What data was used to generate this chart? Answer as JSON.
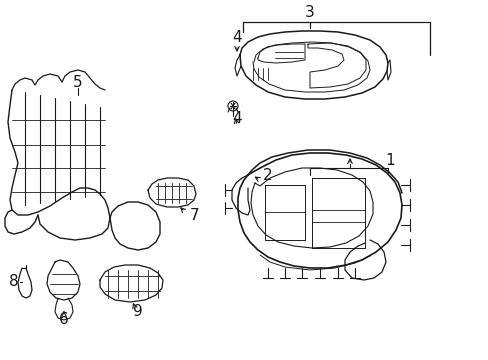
{
  "background_color": "#ffffff",
  "line_color": "#1a1a1a",
  "fig_width": 4.89,
  "fig_height": 3.6,
  "dpi": 100,
  "xlim": [
    0,
    489
  ],
  "ylim": [
    0,
    360
  ]
}
